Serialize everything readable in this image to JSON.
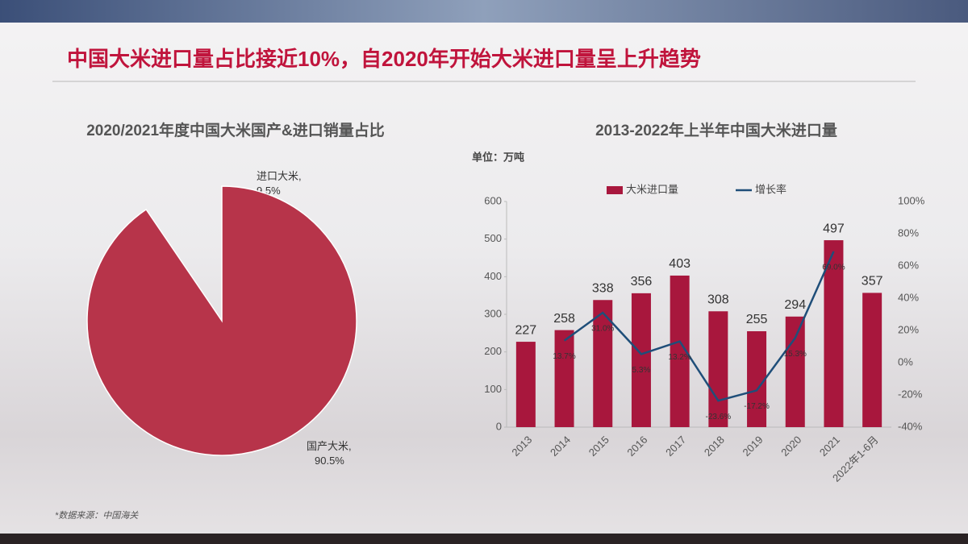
{
  "title": "中国大米进口量占比接近10%，自2020年开始大米进口量呈上升趋势",
  "source": "*数据来源：中国海关",
  "chart_data": [
    {
      "type": "pie",
      "title": "2020/2021年度中国大米国产&进口销量占比",
      "values": [
        9.5,
        90.5
      ],
      "value_labels": [
        "进口大米, 9.5%",
        "国产大米, 90.5%"
      ],
      "colors": [
        "#0b3a6e",
        "#b7344a"
      ]
    },
    {
      "type": "bar-line",
      "title": "2013-2022年上半年中国大米进口量",
      "unit_label": "单位：万吨",
      "categories": [
        "2013",
        "2014",
        "2015",
        "2016",
        "2017",
        "2018",
        "2019",
        "2020",
        "2021",
        "2022年1-6月"
      ],
      "series": [
        {
          "name": "大米进口量",
          "type": "bar",
          "color": "#a8173d",
          "values": [
            227,
            258,
            338,
            356,
            403,
            308,
            255,
            294,
            497,
            357
          ]
        },
        {
          "name": "增长率",
          "type": "line",
          "axis": "y2",
          "color": "#1f4e79",
          "values": [
            null,
            13.7,
            31.0,
            5.3,
            13.2,
            -23.6,
            -17.2,
            15.3,
            69.0,
            null
          ],
          "value_labels": [
            null,
            "13.7%",
            "31.0%",
            "5.3%",
            "13.2%",
            "-23.6%",
            "-17.2%",
            "15.3%",
            "69.0%",
            null
          ]
        }
      ],
      "ylim": [
        0,
        600
      ],
      "yticks": [
        0,
        100,
        200,
        300,
        400,
        500,
        600
      ],
      "y2lim": [
        -40,
        100
      ],
      "y2ticks": [
        {
          "value": -40,
          "label": "-40%"
        },
        {
          "value": -20,
          "label": "-20%"
        },
        {
          "value": 0,
          "label": "0%"
        },
        {
          "value": 20,
          "label": "20%"
        },
        {
          "value": 40,
          "label": "40%"
        },
        {
          "value": 60,
          "label": "60%"
        },
        {
          "value": 80,
          "label": "80%"
        },
        {
          "value": 100,
          "label": "100%"
        }
      ]
    }
  ]
}
